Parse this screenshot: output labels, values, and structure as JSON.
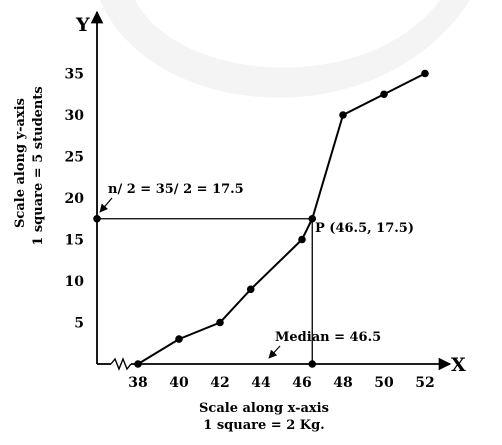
{
  "chart_data": {
    "type": "line",
    "x": [
      38,
      40,
      42,
      43.5,
      46,
      46.5,
      48,
      50,
      52
    ],
    "y": [
      0,
      3,
      5,
      9,
      15,
      17.5,
      30,
      32.5,
      35
    ],
    "xlim": [
      36,
      53
    ],
    "ylim": [
      0,
      38
    ],
    "xticks": [
      "38",
      "40",
      "42",
      "44",
      "46",
      "48",
      "50",
      "52"
    ],
    "yticks": [
      "5",
      "10",
      "15",
      "20",
      "25",
      "30",
      "35"
    ],
    "x_axis_symbol": "X",
    "y_axis_symbol": "Y",
    "xlabel": "Scale along x-axis",
    "xlabel_sub": "1 square = 2 Kg.",
    "ylabel": "Scale along y-axis",
    "ylabel_sub": "1 square = 5 students",
    "grid": false,
    "axis_break_on_x": true,
    "point_P": {
      "x": 46.5,
      "y": 17.5,
      "label": "P (46.5, 17.5)"
    },
    "annotations": {
      "half_n": "n/ 2 = 35/ 2 = 17.5",
      "median": "Median = 46.5"
    }
  }
}
